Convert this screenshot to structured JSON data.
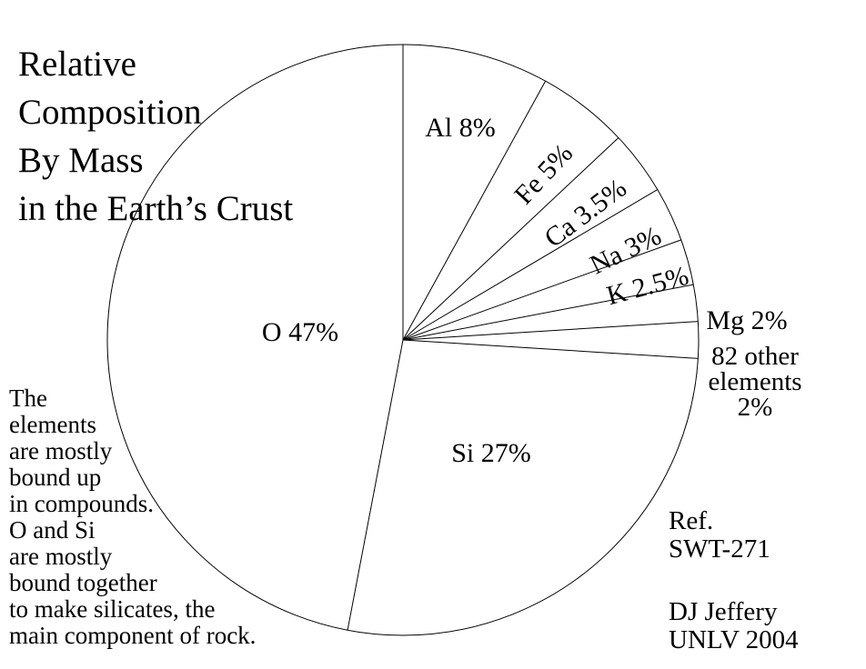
{
  "chart_data": {
    "type": "pie",
    "title": "Relative Composition By Mass in the Earth’s Crust",
    "direction": "clockwise",
    "start_angle_deg": 0,
    "background": "#ffffff",
    "stroke": "#000000",
    "fill": "none",
    "slices": [
      {
        "label": "Al",
        "value": 8,
        "display": "Al 8%"
      },
      {
        "label": "Fe",
        "value": 5,
        "display": "Fe 5%"
      },
      {
        "label": "Ca",
        "value": 3.5,
        "display": "Ca 3.5%"
      },
      {
        "label": "Na",
        "value": 3,
        "display": "Na 3%"
      },
      {
        "label": "K",
        "value": 2.5,
        "display": "K 2.5%"
      },
      {
        "label": "Mg",
        "value": 2,
        "display": "Mg 2%"
      },
      {
        "label": "82 other elements",
        "value": 2,
        "display": "82 other elements 2%"
      },
      {
        "label": "Si",
        "value": 27,
        "display": "Si 27%"
      },
      {
        "label": "O",
        "value": 47,
        "display": "O 47%"
      }
    ]
  },
  "title": {
    "lines": [
      "Relative",
      "Composition",
      "By Mass",
      "in the Earth’s Crust"
    ]
  },
  "labels": {
    "other_lines": [
      "82 other",
      "elements",
      "2%"
    ]
  },
  "left_note": {
    "lines": [
      "The",
      "elements",
      "are mostly",
      "bound up",
      "in compounds.",
      "O and Si",
      "are mostly",
      "bound together",
      "to make silicates, the",
      "main component of rock."
    ]
  },
  "reference": {
    "lines": [
      "Ref.",
      "SWT-271"
    ]
  },
  "credit": {
    "lines": [
      "DJ Jeffery",
      "UNLV 2004"
    ]
  }
}
